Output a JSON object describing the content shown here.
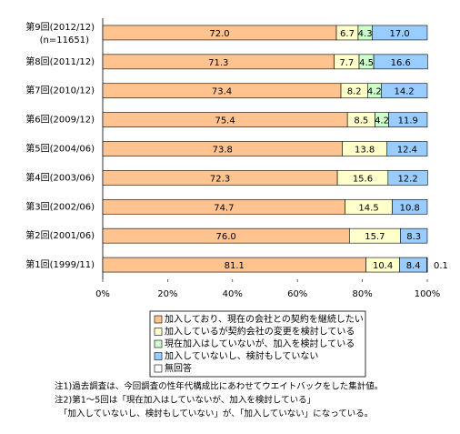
{
  "chart_data": {
    "type": "stacked-barh",
    "categories": [
      "第9回(2012/12)",
      "第8回(2011/12)",
      "第7回(2010/12)",
      "第6回(2009/12)",
      "第5回(2004/06)",
      "第4回(2003/06)",
      "第3回(2002/06)",
      "第2回(2001/06)",
      "第1回(1999/11)"
    ],
    "sample_note": "(n=11651)",
    "series": [
      {
        "name": "加入しており、現在の会社との契約を継続したい",
        "color": "#FFC38F",
        "values": [
          72.0,
          71.3,
          73.4,
          75.4,
          73.8,
          72.3,
          74.7,
          76.0,
          81.1
        ],
        "value_labels": [
          "72.0",
          "71.3",
          "73.4",
          "75.4",
          "73.8",
          "72.3",
          "74.7",
          "76.0",
          "81.1"
        ]
      },
      {
        "name": "加入しているが契約会社の変更を検討している",
        "color": "#FFFFCC",
        "values": [
          6.7,
          7.7,
          8.2,
          8.5,
          13.8,
          15.6,
          14.5,
          15.7,
          10.4
        ],
        "value_labels": [
          "6.7",
          "7.7",
          "8.2",
          "8.5",
          "13.8",
          "15.6",
          "14.5",
          "15.7",
          "10.4"
        ]
      },
      {
        "name": "現在加入はしていないが、加入を検討している",
        "color": "#CCFFCC",
        "values": [
          4.3,
          4.5,
          4.2,
          4.2,
          null,
          null,
          null,
          null,
          null
        ],
        "value_labels": [
          "4.3",
          "4.5",
          "4.2",
          "4.2",
          null,
          null,
          null,
          null,
          null
        ]
      },
      {
        "name": "加入していないし、検討もしていない",
        "color": "#99CCFF",
        "values": [
          17.0,
          16.6,
          14.2,
          11.9,
          12.4,
          12.2,
          10.8,
          8.3,
          8.4
        ],
        "value_labels": [
          "17.0",
          "16.6",
          "14.2",
          "11.9",
          "12.4",
          "12.2",
          "10.8",
          "8.3",
          "8.4"
        ]
      },
      {
        "name": "無回答",
        "color": "#FFFFFF",
        "values": [
          null,
          null,
          null,
          null,
          null,
          null,
          null,
          null,
          0.1
        ]
      }
    ],
    "xlim": [
      0,
      100
    ],
    "xticks": [
      {
        "value": 0,
        "label": "0%"
      },
      {
        "value": 20,
        "label": "20%"
      },
      {
        "value": 40,
        "label": "40%"
      },
      {
        "value": 60,
        "label": "60%"
      },
      {
        "value": 80,
        "label": "80%"
      },
      {
        "value": 100,
        "label": "100%"
      }
    ],
    "notes": [
      "注1)過去調査は、今回調査の性年代構成比にあわせてウエイトバックをした集計値。",
      "注2)第1～5回は「現在加入はしていないが、加入を検討している」",
      "「加入していないし、検討もしていない」が、「加入していない」になっている。"
    ]
  }
}
